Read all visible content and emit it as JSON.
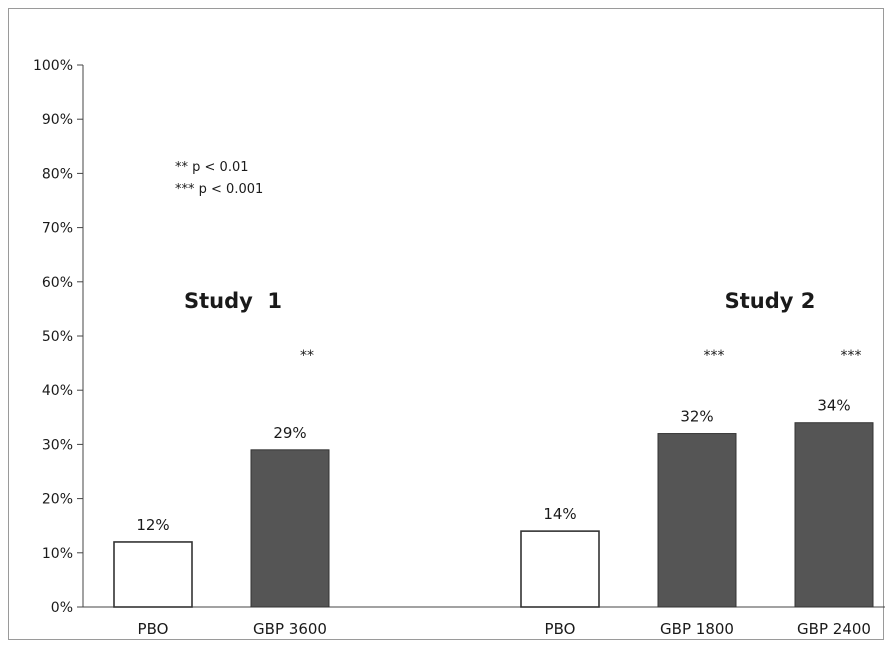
{
  "chart_data": {
    "type": "bar",
    "categories": [
      "PBO",
      "GBP 3600",
      "PBO",
      "GBP 1800",
      "GBP 2400"
    ],
    "values": [
      12,
      29,
      14,
      32,
      34
    ],
    "data_labels": [
      "12%",
      "29%",
      "14%",
      "32%",
      "34%"
    ],
    "significance": [
      "",
      "**",
      "",
      "***",
      "***"
    ],
    "groups": [
      {
        "label": "Study  1",
        "bars": [
          0,
          1
        ]
      },
      {
        "label": "Study 2",
        "bars": [
          2,
          3,
          4
        ]
      }
    ],
    "ylim": [
      0,
      100
    ],
    "yticks": [
      "0%",
      "10%",
      "20%",
      "30%",
      "40%",
      "50%",
      "60%",
      "70%",
      "80%",
      "90%",
      "100%"
    ],
    "legend_notes": [
      "** p < 0.01",
      "*** p < 0.001"
    ],
    "xlabel": "",
    "ylabel": "",
    "grid": false,
    "colors": {
      "placebo_fill": "#ffffff",
      "active_fill": "#555555",
      "bar_stroke": "#333333",
      "axis": "#444444"
    }
  }
}
